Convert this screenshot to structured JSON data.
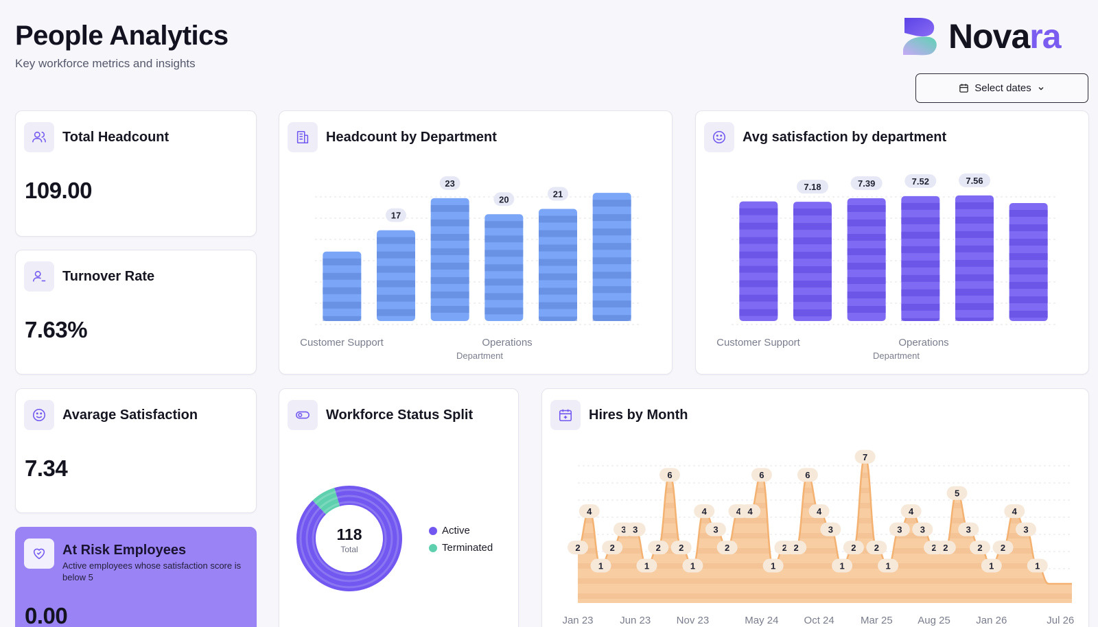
{
  "header": {
    "title": "People Analytics",
    "subtitle": "Key workforce metrics and insights"
  },
  "brand": {
    "name_main": "Nova",
    "name_accent": "ra",
    "colors": {
      "accent": "#7b5cf0",
      "teal": "#5dd3b3"
    }
  },
  "date_picker": {
    "label": "Select dates",
    "icon": "calendar-icon"
  },
  "kpis": {
    "total_headcount": {
      "title": "Total Headcount",
      "value": "109.00",
      "icon": "users-icon"
    },
    "turnover_rate": {
      "title": "Turnover Rate",
      "value": "7.63%",
      "icon": "user-minus-icon"
    },
    "avg_satisfaction": {
      "title": "Avarage Satisfaction",
      "value": "7.34",
      "icon": "smile-icon"
    },
    "at_risk": {
      "title": "At Risk Employees",
      "description": "Active employees whose satisfaction score is below 5",
      "value": "0.00",
      "icon": "heart-icon"
    }
  },
  "headcount_chart": {
    "title": "Headcount by Department",
    "icon": "building-icon",
    "color": "#7ba6f7",
    "xlabel": "Department",
    "tick_labels": [
      "Customer Support",
      "Operations"
    ]
  },
  "satisfaction_chart": {
    "title": "Avg satisfaction by department",
    "icon": "smile-icon",
    "color": "#7f6af4",
    "xlabel": "Department",
    "tick_labels": [
      "Customer Support",
      "Operations"
    ]
  },
  "status_chart": {
    "title": "Workforce Status Split",
    "icon": "toggle-icon",
    "center_value": "118",
    "center_label": "Total",
    "legend": [
      {
        "label": "Active",
        "color": "#7258f0"
      },
      {
        "label": "Terminated",
        "color": "#5fd0ae"
      }
    ]
  },
  "hires_chart": {
    "title": "Hires by Month",
    "icon": "calendar-plus-icon",
    "color": "#f7c08f",
    "x_labels": [
      "Jan 23",
      "Jun 23",
      "Nov 23",
      "May 24",
      "Oct 24",
      "Mar 25",
      "Aug 25",
      "Jan 26",
      "Jul 26"
    ]
  },
  "chart_data": [
    {
      "type": "bar",
      "title": "Headcount by Department",
      "xlabel": "Department",
      "ylabel": "",
      "categories": [
        "Customer Support",
        "",
        "",
        "Operations",
        "",
        ""
      ],
      "values": [
        13,
        17,
        23,
        20,
        21,
        24
      ],
      "labels_shown": [
        false,
        true,
        true,
        true,
        true,
        false
      ],
      "ylim": [
        0,
        28
      ]
    },
    {
      "type": "bar",
      "title": "Avg satisfaction by department",
      "xlabel": "Department",
      "ylabel": "",
      "categories": [
        "Customer Support",
        "",
        "",
        "Operations",
        "",
        ""
      ],
      "values": [
        7.2,
        7.18,
        7.39,
        7.52,
        7.56,
        7.1
      ],
      "labels_shown": [
        false,
        true,
        true,
        true,
        true,
        false
      ],
      "ylim": [
        0,
        9
      ]
    },
    {
      "type": "pie",
      "title": "Workforce Status Split",
      "labels": [
        "Active",
        "Terminated"
      ],
      "values": [
        109,
        9
      ],
      "total": 118
    },
    {
      "type": "area",
      "title": "Hires by Month",
      "x": [
        "Jan 23",
        "Feb 23",
        "Mar 23",
        "Apr 23",
        "May 23",
        "Jun 23",
        "Jul 23",
        "Aug 23",
        "Sep 23",
        "Oct 23",
        "Nov 23",
        "Dec 23",
        "Jan 24",
        "Feb 24",
        "Mar 24",
        "Apr 24",
        "May 24",
        "Jun 24",
        "Jul 24",
        "Aug 24",
        "Sep 24",
        "Oct 24",
        "Nov 24",
        "Dec 24",
        "Jan 25",
        "Feb 25",
        "Mar 25",
        "Apr 25",
        "May 25",
        "Jun 25",
        "Jul 25",
        "Aug 25",
        "Sep 25",
        "Oct 25",
        "Nov 25",
        "Dec 25",
        "Jan 26",
        "Feb 26",
        "Mar 26",
        "Apr 26",
        "May 26",
        "Jun 26",
        "Jul 26",
        "Aug 26"
      ],
      "values": [
        2,
        4,
        1,
        2,
        3,
        3,
        1,
        2,
        6,
        2,
        1,
        4,
        3,
        2,
        4,
        4,
        6,
        1,
        2,
        2,
        6,
        4,
        3,
        1,
        2,
        7,
        2,
        1,
        3,
        4,
        3,
        2,
        2,
        5,
        3,
        2,
        1,
        2,
        4,
        3,
        1,
        0,
        0,
        0
      ],
      "ylim": [
        0,
        8
      ]
    }
  ]
}
